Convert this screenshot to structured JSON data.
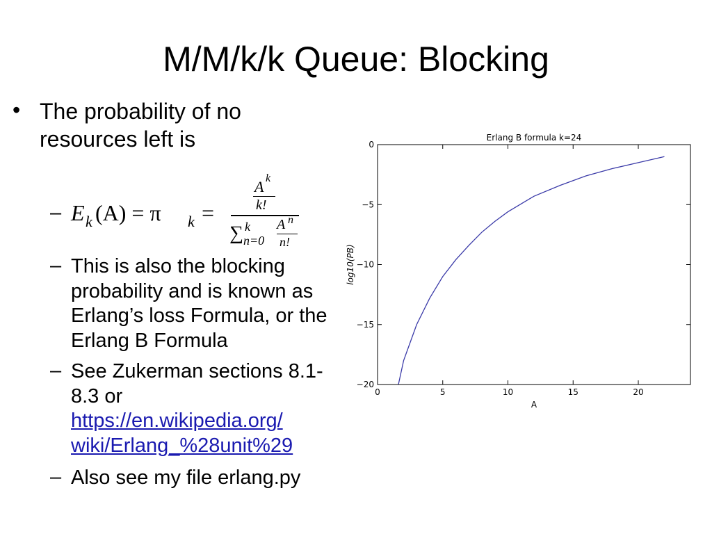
{
  "slide": {
    "title": "M/M/k/k Queue: Blocking",
    "bullet": "The probability of no resources left is",
    "formula": {
      "E": "E",
      "k1": "k",
      "mid": "(A) = π",
      "k2": "k",
      "eq": "=",
      "numA": "A",
      "numk": "k",
      "numfact": "k!",
      "sum": "∑",
      "sumtop": "k",
      "sumbottom": "n=0",
      "denA": "A",
      "denn": "n",
      "denfact": "n!"
    },
    "sub_bullets": [
      "This is also the blocking probability and is known as Erlang’s loss Formula, or the Erlang B Formula",
      "See Zukerman sections 8.1-8.3 or",
      "Also see my file erlang.py"
    ],
    "link_lines": [
      "https://en.wikipedia.org/",
      "wiki/Erlang_%28unit%29"
    ]
  },
  "chart_data": {
    "type": "line",
    "title": "Erlang B formula k=24",
    "xlabel": "A",
    "ylabel": "log10(PB)",
    "x": [
      1.6,
      2,
      3,
      4,
      5,
      6,
      7,
      8,
      9,
      10,
      12,
      14,
      16,
      18,
      20,
      22
    ],
    "series": [
      {
        "color": "#3a3aa8",
        "values": [
          -20,
          -18,
          -15,
          -12.8,
          -11,
          -9.6,
          -8.4,
          -7.3,
          -6.4,
          -5.6,
          -4.3,
          -3.4,
          -2.6,
          -2.0,
          -1.5,
          -1.0
        ]
      }
    ],
    "xlim": [
      0,
      24
    ],
    "ylim": [
      -20,
      0
    ],
    "xticks": [
      0,
      5,
      10,
      15,
      20
    ],
    "yticks": [
      {
        "value": -20,
        "label": "−20"
      },
      {
        "value": -15,
        "label": "−15"
      },
      {
        "value": -10,
        "label": "−10"
      },
      {
        "value": -5,
        "label": "−5"
      },
      0
    ]
  }
}
